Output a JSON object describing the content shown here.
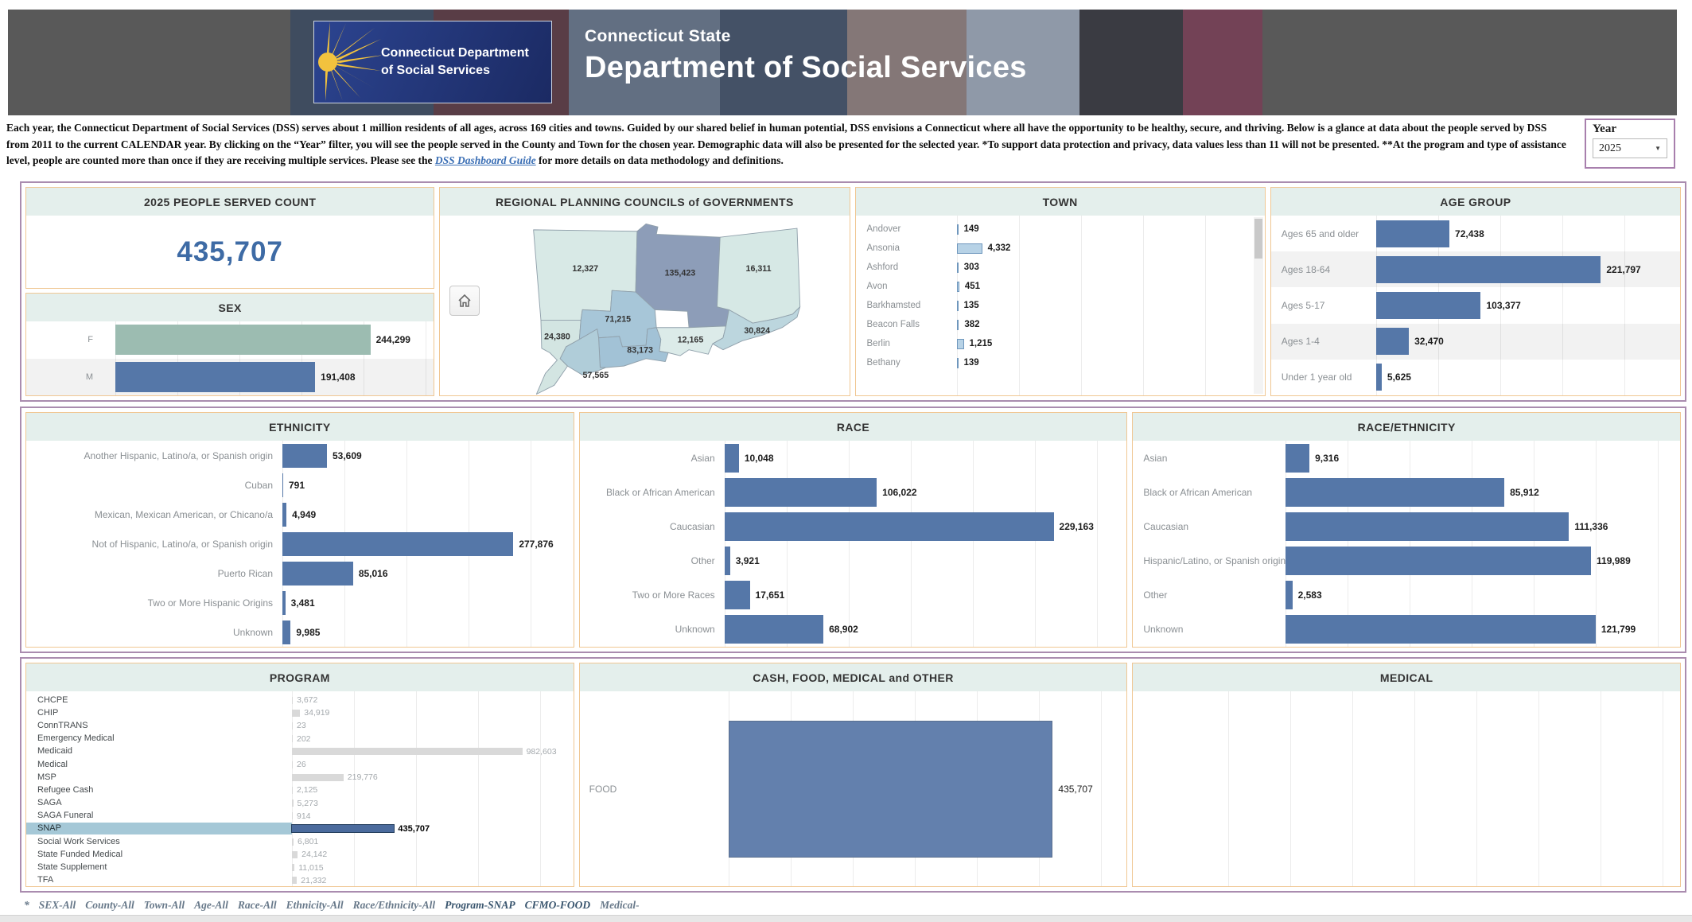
{
  "header": {
    "logo_line1": "Connecticut Department",
    "logo_line2": "of Social Services",
    "state_label": "Connecticut State",
    "dept_title": "Department of Social Services"
  },
  "intro": {
    "text_before_link": "Each year, the Connecticut Department of Social Services (DSS) serves about 1 million residents of all ages, across 169 cities and towns. Guided by our shared belief in human potential, DSS envisions a Connecticut where all have the opportunity to be healthy, secure, and thriving. Below is a glance at data about the people served by DSS from 2011 to the current CALENDAR year. By clicking on the “Year” filter, you will see the people served in the County and Town for the chosen year. Demographic data will also be presented for the selected year. *To support data protection and privacy, data values less than 11 will not be presented.   **At the program and type of assistance level, people are counted more than once if they are receiving multiple services.  Please see the ",
    "link_text": "DSS Dashboard Guide",
    "text_after_link": " for more details on data methodology and definitions."
  },
  "year_filter": {
    "label": "Year",
    "value": "2025"
  },
  "icons": {
    "dropdown": "▼",
    "home": "house"
  },
  "panels": {
    "count": {
      "title": "2025 PEOPLE SERVED COUNT",
      "value": "435,707"
    }
  },
  "filters": {
    "prefix": "*",
    "items": [
      "SEX-All",
      "County-All",
      "Town-All",
      "Age-All",
      "Race-All",
      "Ethnicity-All",
      "Race/Ethnicity-All",
      "Program-SNAP",
      "CFMO-FOOD",
      "Medical-"
    ]
  },
  "chart_data": [
    {
      "id": "sex",
      "type": "bar",
      "title": "SEX",
      "orientation": "horizontal",
      "categories": [
        "F",
        "M"
      ],
      "values": [
        244299,
        191408
      ],
      "colors": [
        "#9cbcb1",
        "#5577a8"
      ],
      "xlim": [
        0,
        305000
      ],
      "banded": true
    },
    {
      "id": "town",
      "type": "bar",
      "title": "TOWN",
      "categories": [
        "Andover",
        "Ansonia",
        "Ashford",
        "Avon",
        "Barkhamsted",
        "Beacon Falls",
        "Berlin",
        "Bethany"
      ],
      "values": [
        149,
        4332,
        303,
        451,
        135,
        382,
        1215,
        139
      ],
      "color": "#b7d2e6",
      "bar_border": "#6f97bd",
      "xlim": [
        0,
        50000
      ],
      "scrollable": true
    },
    {
      "id": "age_group",
      "type": "bar",
      "title": "AGE GROUP",
      "categories": [
        "Ages 65 and older",
        "Ages 18-64",
        "Ages 5-17",
        "Ages 1-4",
        "Under 1 year old"
      ],
      "values": [
        72438,
        221797,
        103377,
        32470,
        5625
      ],
      "color": "#5577a8",
      "xlim": [
        0,
        300000
      ],
      "banded": true
    },
    {
      "id": "ethnicity",
      "type": "bar",
      "title": "ETHNICITY",
      "categories": [
        "Another Hispanic, Latino/a, or Spanish origin",
        "Cuban",
        "Mexican, Mexican American, or Chicano/a",
        "Not of Hispanic, Latino/a, or Spanish origin",
        "Puerto Rican",
        "Two or More Hispanic Origins",
        "Unknown"
      ],
      "values": [
        53609,
        791,
        4949,
        277876,
        85016,
        3481,
        9985
      ],
      "color": "#5577a8",
      "xlim": [
        0,
        350000
      ]
    },
    {
      "id": "race",
      "type": "bar",
      "title": "RACE",
      "categories": [
        "Asian",
        "Black or African American",
        "Caucasian",
        "Other",
        "Two or More Races",
        "Unknown"
      ],
      "values": [
        10048,
        106022,
        229163,
        3921,
        17651,
        68902
      ],
      "color": "#5577a8",
      "xlim": [
        0,
        280000
      ]
    },
    {
      "id": "race_ethnicity",
      "type": "bar",
      "title": "RACE/ETHNICITY",
      "categories": [
        "Asian",
        "Black or African American",
        "Caucasian",
        "Hispanic/Latino, or Spanish origin",
        "Other",
        "Unknown"
      ],
      "values": [
        9316,
        85912,
        111336,
        119989,
        2583,
        121799
      ],
      "color": "#5577a8",
      "xlim": [
        0,
        155000
      ]
    },
    {
      "id": "program",
      "type": "bar",
      "title": "PROGRAM",
      "categories": [
        "CHCPE",
        "CHIP",
        "ConnTRANS",
        "Emergency Medical",
        "Medicaid",
        "Medical",
        "MSP",
        "Refugee Cash",
        "SAGA",
        "SAGA Funeral",
        "SNAP",
        "Social Work Services",
        "State Funded Medical",
        "State Supplement",
        "TFA"
      ],
      "values": [
        3672,
        34919,
        23,
        202,
        982603,
        26,
        219776,
        2125,
        5273,
        914,
        435707,
        6801,
        24142,
        11015,
        21332
      ],
      "muted_color": "#d9d9d9",
      "selected_index": 10,
      "selected_color": "#4b6b9d",
      "xlim": [
        0,
        1200000
      ]
    },
    {
      "id": "cash_food_medical_other",
      "type": "bar",
      "title": "CASH, FOOD, MEDICAL and OTHER",
      "categories": [
        "FOOD"
      ],
      "values": [
        435707
      ],
      "color": "#6380ad",
      "bar_border": "#5a6f8f",
      "xlim": [
        0,
        535000
      ]
    },
    {
      "id": "medical",
      "type": "bar",
      "title": "MEDICAL",
      "categories": [],
      "values": [],
      "xlim": [
        0,
        1
      ]
    },
    {
      "id": "regional_planning_councils",
      "type": "choropleth",
      "title": "REGIONAL PLANNING COUNCILS of GOVERNMENTS",
      "regions": [
        {
          "label": "12,327",
          "value": 12327,
          "color": "#d8e9e6"
        },
        {
          "label": "135,423",
          "value": 135423,
          "color": "#8d9db8"
        },
        {
          "label": "16,311",
          "value": 16311,
          "color": "#d6e8e5"
        },
        {
          "label": "24,380",
          "value": 24380,
          "color": "#d3e5e2"
        },
        {
          "label": "71,215",
          "value": 71215,
          "color": "#a7c6d8"
        },
        {
          "label": "12,165",
          "value": 12165,
          "color": "#dcebe9"
        },
        {
          "label": "30,824",
          "value": 30824,
          "color": "#bcd6de"
        },
        {
          "label": "83,173",
          "value": 83173,
          "color": "#a2c2d6"
        },
        {
          "label": "57,565",
          "value": 57565,
          "color": "#b0cdd9"
        }
      ]
    }
  ]
}
